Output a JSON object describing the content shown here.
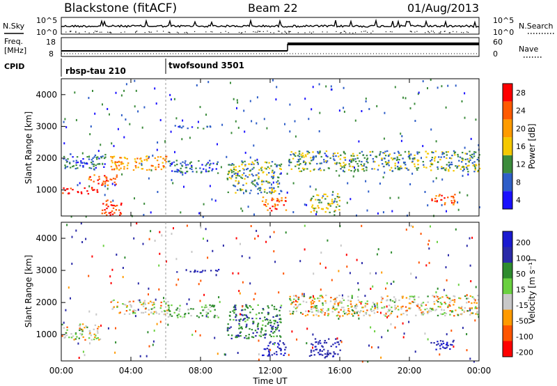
{
  "header": {
    "title": "Blackstone (fitACF)",
    "beam": "Beam 22",
    "date": "01/Aug/2013"
  },
  "upper_panels": {
    "nsky_label": "N.Sky",
    "nsky_ticks": [
      "10^5",
      "10^0"
    ],
    "nsearch_label": "N.Search",
    "nsearch_ticks": [
      "10^5",
      "10^0"
    ],
    "freq_label_line1": "Freq.",
    "freq_label_line2": "[MHz]",
    "freq_ticks": [
      "18",
      "8"
    ],
    "nave_label": "Nave",
    "nave_ticks": [
      "60",
      "0"
    ],
    "cpid_label": "CPID",
    "cpid_modes": [
      {
        "name": "rbsp-tau 210",
        "start_hour": 0
      },
      {
        "name": "twofsound 3501",
        "start_hour": 6
      }
    ]
  },
  "power_colorbar": {
    "label": "Power [dB]",
    "ticks": [
      "28",
      "24",
      "20",
      "16",
      "12",
      "8",
      "4"
    ],
    "colors": [
      "#ff0000",
      "#ff5a00",
      "#ff9b00",
      "#f5c800",
      "#3c8c3c",
      "#2e5ec8",
      "#1a10ff"
    ]
  },
  "velocity_colorbar": {
    "label": "Velocity [m s⁻¹]",
    "ticks": [
      "200",
      "100",
      "50",
      "15",
      "-15",
      "-50",
      "-100",
      "-200"
    ],
    "colors": [
      "#1a1ad0",
      "#2a2aa8",
      "#2e8b2e",
      "#6ad040",
      "#c8c8c8",
      "#ff9a00",
      "#ff5500",
      "#ff0000"
    ]
  },
  "chart_data": [
    {
      "type": "heatmap",
      "title": "Power",
      "ylabel": "Slant Range [km]",
      "yticks": [
        "4000",
        "3000",
        "2000",
        "1000"
      ],
      "ylim": [
        180,
        4500
      ],
      "xlim": [
        0,
        24
      ],
      "colorbar_label": "Power [dB]",
      "colorbar_range": [
        0,
        30
      ],
      "echo_regions": [
        {
          "t0": 0.0,
          "t1": 2.2,
          "r0": 900,
          "r1": 1100,
          "value": 29
        },
        {
          "t0": 1.5,
          "t1": 3.2,
          "r0": 1150,
          "r1": 1500,
          "value": 24
        },
        {
          "t0": 2.8,
          "t1": 6.1,
          "r0": 1650,
          "r1": 2100,
          "value": 20
        },
        {
          "t0": 0.0,
          "t1": 2.5,
          "r0": 1650,
          "r1": 2150,
          "value": 8
        },
        {
          "t0": 6.1,
          "t1": 9.0,
          "r0": 1550,
          "r1": 1950,
          "value": 9
        },
        {
          "t0": 9.5,
          "t1": 12.6,
          "r0": 900,
          "r1": 1950,
          "value": 12
        },
        {
          "t0": 11.5,
          "t1": 12.9,
          "r0": 350,
          "r1": 800,
          "value": 24
        },
        {
          "t0": 13.0,
          "t1": 24.0,
          "r0": 1600,
          "r1": 2250,
          "value": 12
        },
        {
          "t0": 14.2,
          "t1": 16.0,
          "r0": 300,
          "r1": 900,
          "value": 14
        },
        {
          "t0": 21.2,
          "t1": 22.6,
          "r0": 550,
          "r1": 900,
          "value": 26
        },
        {
          "t0": 6.5,
          "t1": 9.0,
          "r0": 2950,
          "r1": 3050,
          "value": 8
        },
        {
          "t0": 2.3,
          "t1": 3.5,
          "r0": 200,
          "r1": 700,
          "value": 27
        }
      ]
    },
    {
      "type": "heatmap",
      "title": "Velocity",
      "ylabel": "Slant Range [km]",
      "xlabel": "Time UT",
      "yticks": [
        "4000",
        "3000",
        "2000",
        "1000"
      ],
      "xticks": [
        "00:00",
        "04:00",
        "08:00",
        "12:00",
        "16:00",
        "20:00",
        "00:00"
      ],
      "ylim": [
        180,
        4500
      ],
      "xlim": [
        0,
        24
      ],
      "colorbar_label": "Velocity [m s⁻¹]",
      "colorbar_range": [
        -200,
        200
      ],
      "echo_regions": [
        {
          "t0": 0.0,
          "t1": 2.2,
          "r0": 850,
          "r1": 1350,
          "value": 0
        },
        {
          "t0": 2.8,
          "t1": 6.1,
          "r0": 1650,
          "r1": 2100,
          "value": 0
        },
        {
          "t0": 6.1,
          "t1": 9.0,
          "r0": 1550,
          "r1": 1950,
          "value": 30
        },
        {
          "t0": 9.5,
          "t1": 12.6,
          "r0": 900,
          "r1": 1950,
          "value": 60
        },
        {
          "t0": 11.5,
          "t1": 12.9,
          "r0": 350,
          "r1": 800,
          "value": 150
        },
        {
          "t0": 13.0,
          "t1": 24.0,
          "r0": 1600,
          "r1": 2250,
          "value": 0
        },
        {
          "t0": 14.2,
          "t1": 16.0,
          "r0": 300,
          "r1": 900,
          "value": 120
        },
        {
          "t0": 21.2,
          "t1": 22.6,
          "r0": 550,
          "r1": 900,
          "value": 150
        },
        {
          "t0": 6.5,
          "t1": 9.0,
          "r0": 2950,
          "r1": 3050,
          "value": 120
        }
      ]
    }
  ]
}
